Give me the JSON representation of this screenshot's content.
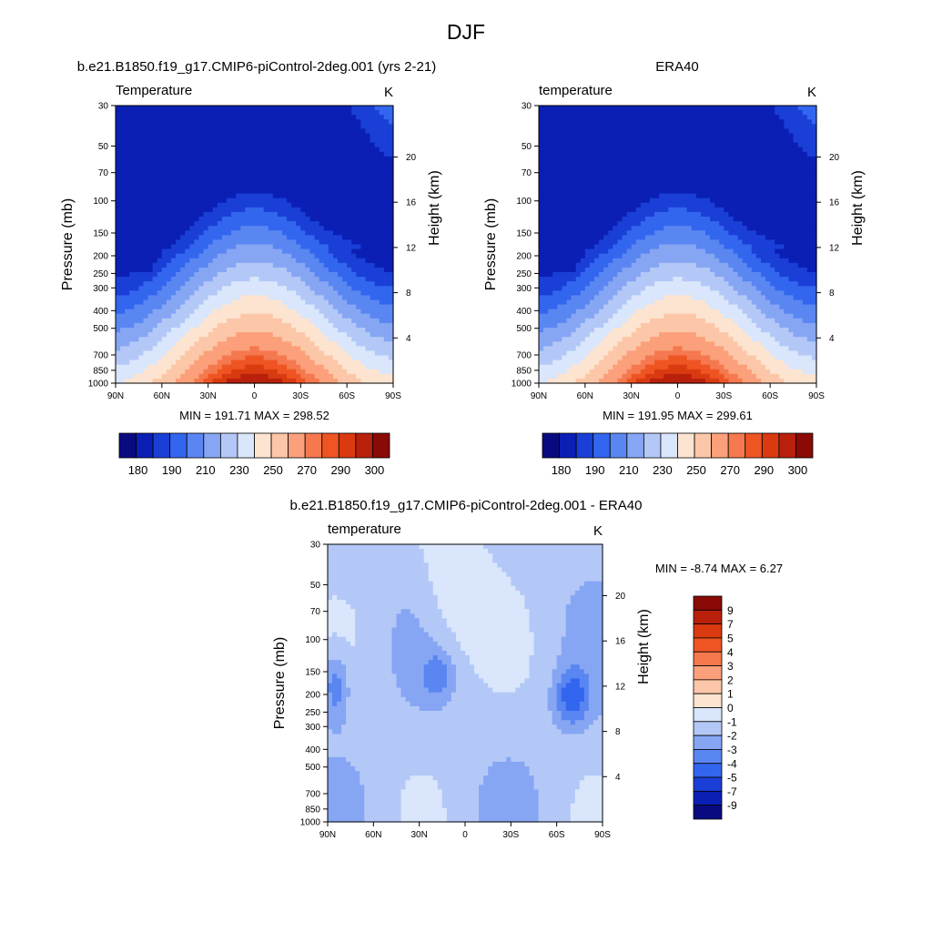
{
  "figure": {
    "title": "DJF"
  },
  "chart_data": [
    {
      "type": "heatmap",
      "panel": "model",
      "title": "b.e21.B1850.f19_g17.CMIP6-piControl-2deg.001 (yrs 2-21)",
      "left_label": "Temperature",
      "units": "K",
      "ylabel": "Pressure (mb)",
      "right_label": "Height (km)",
      "x_ticks": [
        "90N",
        "60N",
        "30N",
        "0",
        "30S",
        "60S",
        "90S"
      ],
      "x_range": [
        90,
        -90
      ],
      "y_ticks": [
        "30",
        "50",
        "70",
        "100",
        "150",
        "200",
        "250",
        "300",
        "400",
        "500",
        "700",
        "850",
        "1000"
      ],
      "y_tick_values": [
        30,
        50,
        70,
        100,
        150,
        200,
        250,
        300,
        400,
        500,
        700,
        850,
        1000
      ],
      "height_ticks": [
        "4",
        "8",
        "12",
        "16",
        "20"
      ],
      "height_tick_values": [
        4,
        8,
        12,
        16,
        20
      ],
      "y_range": [
        1000,
        30
      ],
      "y_scale": "log",
      "stats": "MIN = 191.71  MAX = 298.52",
      "min": 191.71,
      "max": 298.52,
      "colorbar_labels": [
        "180",
        "190",
        "210",
        "230",
        "250",
        "270",
        "290",
        "300"
      ]
    },
    {
      "type": "heatmap",
      "panel": "observation",
      "title": "ERA40",
      "left_label": "temperature",
      "units": "K",
      "ylabel": "Pressure (mb)",
      "right_label": "Height (km)",
      "x_ticks": [
        "90N",
        "60N",
        "30N",
        "0",
        "30S",
        "60S",
        "90S"
      ],
      "x_range": [
        90,
        -90
      ],
      "y_ticks": [
        "30",
        "50",
        "70",
        "100",
        "150",
        "200",
        "250",
        "300",
        "400",
        "500",
        "700",
        "850",
        "1000"
      ],
      "y_tick_values": [
        30,
        50,
        70,
        100,
        150,
        200,
        250,
        300,
        400,
        500,
        700,
        850,
        1000
      ],
      "height_ticks": [
        "4",
        "8",
        "12",
        "16",
        "20"
      ],
      "height_tick_values": [
        4,
        8,
        12,
        16,
        20
      ],
      "y_range": [
        1000,
        30
      ],
      "y_scale": "log",
      "stats": "MIN = 191.95  MAX = 299.61",
      "min": 191.95,
      "max": 299.61,
      "colorbar_labels": [
        "180",
        "190",
        "210",
        "230",
        "250",
        "270",
        "290",
        "300"
      ]
    },
    {
      "type": "heatmap",
      "panel": "difference",
      "title": "b.e21.B1850.f19_g17.CMIP6-piControl-2deg.001 - ERA40",
      "left_label": "temperature",
      "units": "K",
      "ylabel": "Pressure (mb)",
      "right_label": "Height (km)",
      "x_ticks": [
        "90N",
        "60N",
        "30N",
        "0",
        "30S",
        "60S",
        "90S"
      ],
      "x_range": [
        90,
        -90
      ],
      "y_ticks": [
        "30",
        "50",
        "70",
        "100",
        "150",
        "200",
        "250",
        "300",
        "400",
        "500",
        "700",
        "850",
        "1000"
      ],
      "y_tick_values": [
        30,
        50,
        70,
        100,
        150,
        200,
        250,
        300,
        400,
        500,
        700,
        850,
        1000
      ],
      "height_ticks": [
        "4",
        "8",
        "12",
        "16",
        "20"
      ],
      "height_tick_values": [
        4,
        8,
        12,
        16,
        20
      ],
      "y_range": [
        1000,
        30
      ],
      "y_scale": "log",
      "stats": "MIN =  -8.74  MAX =   6.27",
      "min": -8.74,
      "max": 6.27,
      "colorbar_labels": [
        "9",
        "7",
        "5",
        "4",
        "3",
        "2",
        "1",
        "0",
        "-1",
        "-2",
        "-3",
        "-4",
        "-5",
        "-7",
        "-9"
      ]
    }
  ],
  "colors": {
    "temperature_scale": [
      "#0a0a80",
      "#0b1fb5",
      "#1a3fd6",
      "#3366ee",
      "#5a86f2",
      "#86a6f4",
      "#b3c8f7",
      "#d9e6fb",
      "#fde4d0",
      "#fcc7a8",
      "#fba07a",
      "#f5784e",
      "#ee5523",
      "#d93a10",
      "#b8200c",
      "#8a0a05"
    ],
    "difference_scale": [
      "#8a0a05",
      "#b8200c",
      "#d93a10",
      "#ee5523",
      "#f5784e",
      "#fba07a",
      "#fcc7a8",
      "#fde4d0",
      "#d9e6fb",
      "#b3c8f7",
      "#86a6f4",
      "#5a86f2",
      "#3366ee",
      "#1a3fd6",
      "#0b1fb5",
      "#0a0a80"
    ]
  }
}
